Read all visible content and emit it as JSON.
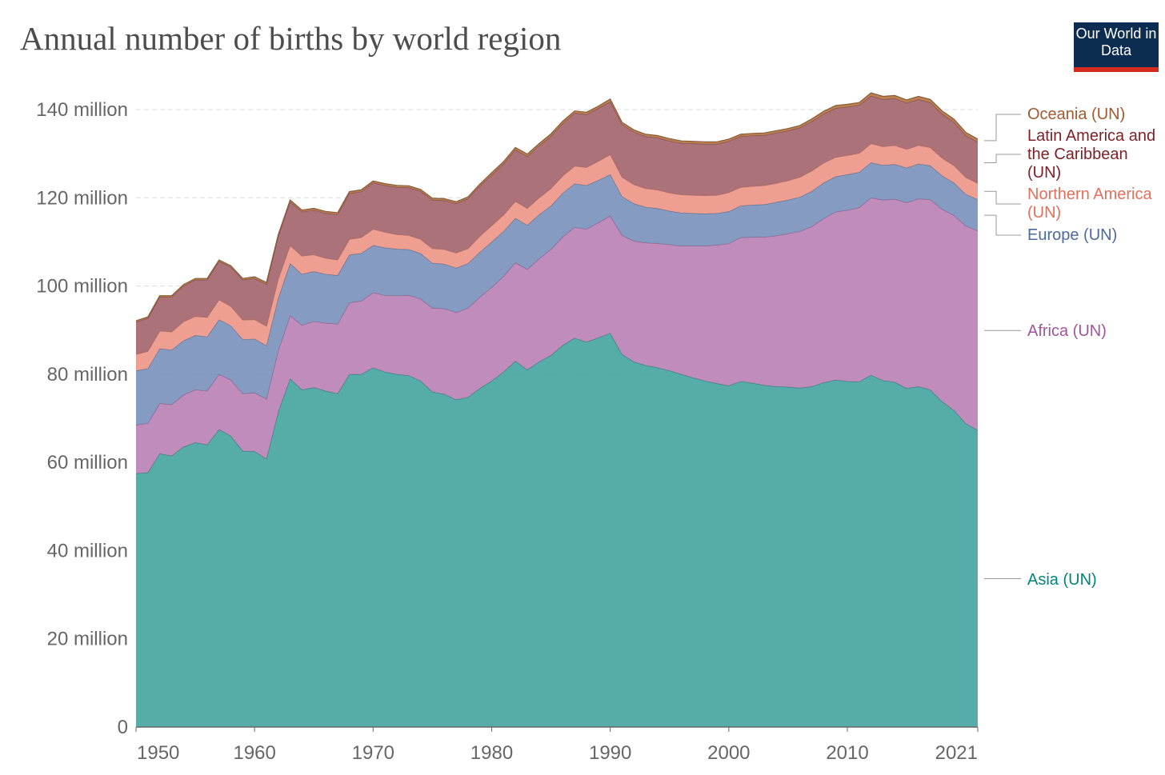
{
  "chart_data": {
    "type": "stacked-area",
    "title": "Annual number of births by world region",
    "logo": "Our World in Data",
    "x": [
      1950,
      1951,
      1952,
      1953,
      1954,
      1955,
      1956,
      1957,
      1958,
      1959,
      1960,
      1961,
      1962,
      1963,
      1964,
      1965,
      1966,
      1967,
      1968,
      1969,
      1970,
      1971,
      1972,
      1973,
      1974,
      1975,
      1976,
      1977,
      1978,
      1979,
      1980,
      1981,
      1982,
      1983,
      1984,
      1985,
      1986,
      1987,
      1988,
      1989,
      1990,
      1991,
      1992,
      1993,
      1994,
      1995,
      1996,
      1997,
      1998,
      1999,
      2000,
      2001,
      2002,
      2003,
      2004,
      2005,
      2006,
      2007,
      2008,
      2009,
      2010,
      2011,
      2012,
      2013,
      2014,
      2015,
      2016,
      2017,
      2018,
      2019,
      2020,
      2021
    ],
    "xlim": [
      1950,
      2021
    ],
    "xticks": [
      1950,
      1960,
      1970,
      1980,
      1990,
      2000,
      2010,
      2021
    ],
    "ylim": [
      0,
      140
    ],
    "yticks": [
      0,
      {
        "value": 20,
        "label": "20 million"
      },
      {
        "value": 40,
        "label": "40 million"
      },
      {
        "value": 60,
        "label": "60 million"
      },
      {
        "value": 80,
        "label": "80 million"
      },
      {
        "value": 100,
        "label": "100 million"
      },
      {
        "value": 120,
        "label": "120 million"
      },
      {
        "value": 140,
        "label": "140 million"
      }
    ],
    "grid": true,
    "series": [
      {
        "name": "Asia (UN)",
        "color": "#4ca8a3",
        "label_color": "#00847e",
        "values": [
          57.5,
          57.7,
          62,
          61.5,
          63.5,
          64.5,
          64,
          67.5,
          66,
          62.6,
          62.5,
          60.8,
          71.5,
          79,
          76.5,
          77,
          76.2,
          75.6,
          80,
          80,
          81.5,
          80.5,
          80,
          79.7,
          78.5,
          76,
          75.5,
          74.2,
          74.8,
          76.8,
          78.5,
          80.5,
          83,
          81,
          82.8,
          84.3,
          86.6,
          88.2,
          87.3,
          88.3,
          89.3,
          84.5,
          82.8,
          82,
          81.5,
          80.8,
          80,
          79.2,
          78.5,
          77.9,
          77.4,
          78.4,
          78,
          77.5,
          77.2,
          77.1,
          76.9,
          77.2,
          78.1,
          78.7,
          78.4,
          78.3,
          79.8,
          78.6,
          78.2,
          76.8,
          77.2,
          76.5,
          73.8,
          71.8,
          68.8,
          67.3
        ]
      },
      {
        "name": "Africa (UN)",
        "color": "#bd86b8",
        "label_color": "#a2559c",
        "values": [
          11,
          11.2,
          11.4,
          11.6,
          11.8,
          12,
          12.2,
          12.5,
          12.7,
          13,
          13.3,
          13.6,
          13.9,
          14.3,
          14.6,
          15,
          15.4,
          15.8,
          16.2,
          16.6,
          17,
          17.4,
          17.8,
          18.2,
          18.6,
          19,
          19.4,
          19.8,
          20.2,
          20.7,
          21.2,
          21.7,
          22.3,
          22.8,
          23.4,
          24,
          24.6,
          25.1,
          25.6,
          26.1,
          26.6,
          27,
          27.4,
          27.8,
          28.2,
          28.6,
          29.1,
          29.9,
          30.6,
          31.4,
          32.2,
          32.6,
          33.1,
          33.6,
          34.2,
          34.8,
          35.5,
          36.3,
          37.2,
          38.1,
          38.8,
          39.5,
          40.2,
          40.9,
          41.5,
          42.1,
          42.6,
          43.1,
          43.6,
          44.2,
          44.8,
          45.2
        ]
      },
      {
        "name": "Europe (UN)",
        "color": "#8096be",
        "label_color": "#4c6a9c",
        "values": [
          12.3,
          12.4,
          12.4,
          12.4,
          12.3,
          12.3,
          12.3,
          12.4,
          12.3,
          12.3,
          12.2,
          12.1,
          11.9,
          11.8,
          11.6,
          11.3,
          11.1,
          11,
          10.9,
          10.8,
          10.7,
          10.8,
          10.6,
          10.4,
          10.3,
          10.2,
          10.1,
          10.1,
          10.1,
          10.2,
          10.3,
          10.2,
          10.1,
          10,
          10,
          9.9,
          9.9,
          9.9,
          9.9,
          9.6,
          9.4,
          8.8,
          8.5,
          8.1,
          7.9,
          7.6,
          7.5,
          7.4,
          7.3,
          7.2,
          7.3,
          7.2,
          7.3,
          7.4,
          7.6,
          7.6,
          7.8,
          8,
          8.1,
          8,
          8.1,
          8,
          8,
          7.9,
          7.9,
          7.9,
          7.9,
          7.7,
          7.6,
          7.4,
          7.2,
          7.1
        ]
      },
      {
        "name": "Northern America (UN)",
        "color": "#ee9a8c",
        "label_color": "#e56e5a",
        "values": [
          3.7,
          3.9,
          4,
          4.1,
          4.3,
          4.3,
          4.4,
          4.5,
          4.4,
          4.4,
          4.4,
          4.4,
          4.3,
          4.1,
          4.1,
          3.8,
          3.6,
          3.5,
          3.5,
          3.6,
          3.7,
          3.5,
          3.3,
          3.2,
          3.2,
          3.3,
          3.3,
          3.4,
          3.4,
          3.6,
          3.7,
          3.7,
          3.8,
          3.8,
          3.8,
          3.9,
          3.9,
          4,
          4.1,
          4.3,
          4.5,
          4.4,
          4.3,
          4.2,
          4.2,
          4.1,
          4.1,
          4.1,
          4.1,
          4.1,
          4.3,
          4.2,
          4.2,
          4.3,
          4.3,
          4.4,
          4.5,
          4.6,
          4.5,
          4.4,
          4.3,
          4.3,
          4.3,
          4.2,
          4.3,
          4.2,
          4.2,
          4.1,
          4,
          3.9,
          3.8,
          3.7
        ]
      },
      {
        "name": "Latin America and the Caribbean (UN)",
        "color": "#a86a72",
        "label_color": "#7f2025",
        "values": [
          7.3,
          7.5,
          7.7,
          7.9,
          8.1,
          8.3,
          8.5,
          8.7,
          8.9,
          9.1,
          9.3,
          9.5,
          9.7,
          9.9,
          10,
          10.1,
          10.2,
          10.3,
          10.4,
          10.4,
          10.5,
          10.6,
          10.7,
          10.8,
          10.9,
          11,
          11.1,
          11.2,
          11.3,
          11.4,
          11.5,
          11.6,
          11.7,
          11.8,
          11.8,
          11.9,
          11.9,
          12,
          12,
          12,
          12,
          11.9,
          11.9,
          11.8,
          11.8,
          11.8,
          11.7,
          11.7,
          11.7,
          11.6,
          11.6,
          11.5,
          11.5,
          11.4,
          11.4,
          11.3,
          11.2,
          11.2,
          11.1,
          11.1,
          11,
          10.9,
          10.8,
          10.7,
          10.6,
          10.5,
          10.4,
          10.2,
          10,
          9.8,
          9.5,
          9.3
        ]
      },
      {
        "name": "Oceania (UN)",
        "color": "#b77a4a",
        "label_color": "#a2592f",
        "values": [
          0.3,
          0.3,
          0.3,
          0.3,
          0.3,
          0.3,
          0.3,
          0.3,
          0.3,
          0.3,
          0.4,
          0.4,
          0.4,
          0.4,
          0.4,
          0.4,
          0.4,
          0.4,
          0.4,
          0.4,
          0.4,
          0.4,
          0.4,
          0.4,
          0.4,
          0.4,
          0.4,
          0.4,
          0.4,
          0.4,
          0.5,
          0.5,
          0.5,
          0.5,
          0.5,
          0.5,
          0.5,
          0.5,
          0.5,
          0.5,
          0.6,
          0.5,
          0.5,
          0.5,
          0.5,
          0.5,
          0.5,
          0.5,
          0.5,
          0.5,
          0.5,
          0.5,
          0.5,
          0.5,
          0.5,
          0.5,
          0.5,
          0.6,
          0.6,
          0.6,
          0.6,
          0.6,
          0.7,
          0.7,
          0.7,
          0.7,
          0.7,
          0.7,
          0.7,
          0.7,
          0.7,
          0.7
        ]
      }
    ]
  }
}
